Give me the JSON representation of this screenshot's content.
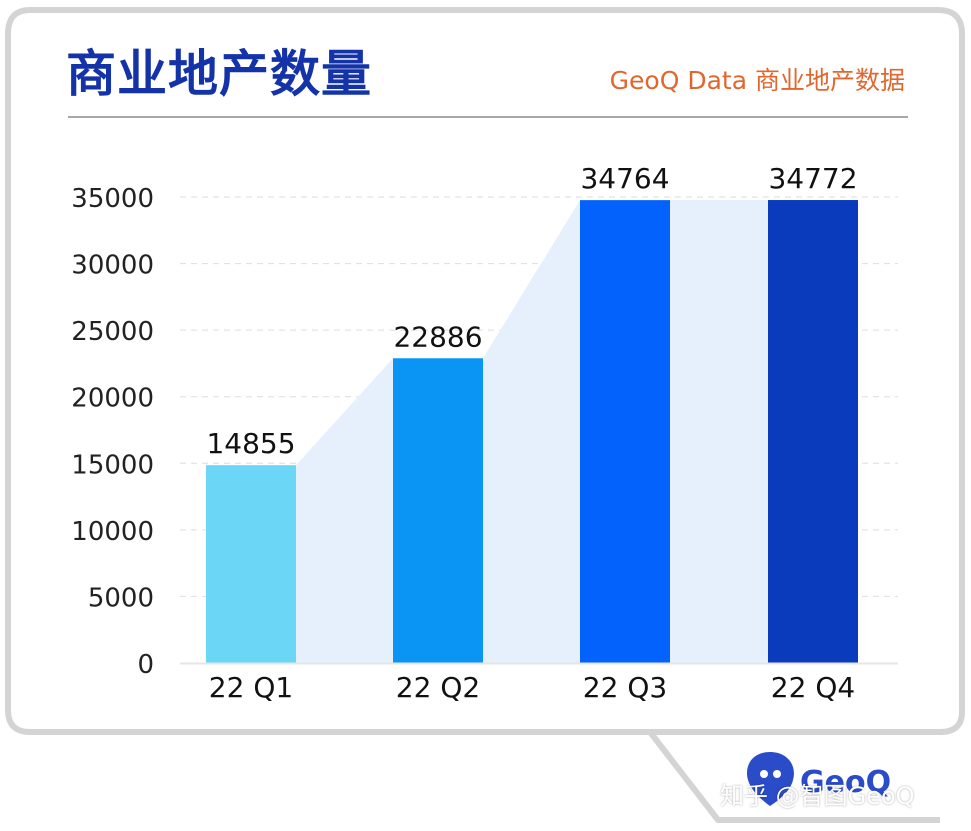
{
  "header": {
    "title": "商业地产数量",
    "source": "GeoQ Data 商业地产数据"
  },
  "footer": {
    "credit": "知乎 @智图GeoQ",
    "logo_text": "GeoQ"
  },
  "colors": {
    "title": "#1433a8",
    "source": "#e2672f",
    "area": "#e6effc",
    "frame": "#d4d4d4",
    "bars": [
      "#6cd6f7",
      "#0a95f5",
      "#0262fb",
      "#0a3bbd"
    ]
  },
  "chart_data": {
    "type": "bar",
    "categories": [
      "22 Q1",
      "22 Q2",
      "22 Q3",
      "22 Q4"
    ],
    "values": [
      14855,
      22886,
      34764,
      34772
    ],
    "ylim": [
      0,
      35000
    ],
    "yticks": [
      0,
      5000,
      10000,
      15000,
      20000,
      25000,
      30000,
      35000
    ],
    "grid": true,
    "legend": "none"
  }
}
